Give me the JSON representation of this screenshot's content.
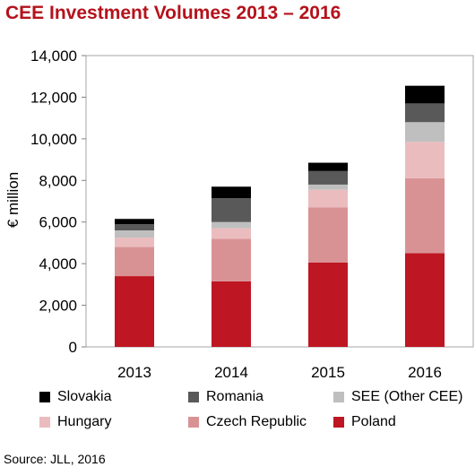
{
  "title": "CEE Investment Volumes 2013 – 2016",
  "source": "Source: JLL, 2016",
  "chart_data": {
    "type": "bar",
    "stacked": true,
    "title": "CEE Investment Volumes 2013 – 2016",
    "xlabel": "",
    "ylabel": "€ million",
    "ylim": [
      0,
      14000
    ],
    "yticks": [
      0,
      2000,
      4000,
      6000,
      8000,
      10000,
      12000,
      14000
    ],
    "ytick_labels": [
      "0",
      "2,000",
      "4,000",
      "6,000",
      "8,000",
      "10,000",
      "12,000",
      "14,000"
    ],
    "categories": [
      "2013",
      "2014",
      "2015",
      "2016"
    ],
    "grid": false,
    "legend_position": "bottom",
    "series": [
      {
        "name": "Poland",
        "color": "#be1622",
        "values": [
          3400,
          3150,
          4050,
          4500
        ]
      },
      {
        "name": "Czech Republic",
        "color": "#d99294",
        "values": [
          1400,
          2050,
          2650,
          3600
        ]
      },
      {
        "name": "Hungary",
        "color": "#ebbcbe",
        "values": [
          450,
          500,
          850,
          1750
        ]
      },
      {
        "name": "SEE (Other CEE)",
        "color": "#bfbfbf",
        "values": [
          350,
          300,
          250,
          950
        ]
      },
      {
        "name": "Romania",
        "color": "#595959",
        "values": [
          300,
          1150,
          650,
          900
        ]
      },
      {
        "name": "Slovakia",
        "color": "#000000",
        "values": [
          250,
          550,
          400,
          850
        ]
      }
    ]
  },
  "legend": [
    {
      "label": "Slovakia",
      "color": "#000000"
    },
    {
      "label": "Romania",
      "color": "#595959"
    },
    {
      "label": "SEE (Other CEE)",
      "color": "#bfbfbf"
    },
    {
      "label": "Hungary",
      "color": "#ebbcbe"
    },
    {
      "label": "Czech Republic",
      "color": "#d99294"
    },
    {
      "label": "Poland",
      "color": "#be1622"
    }
  ]
}
